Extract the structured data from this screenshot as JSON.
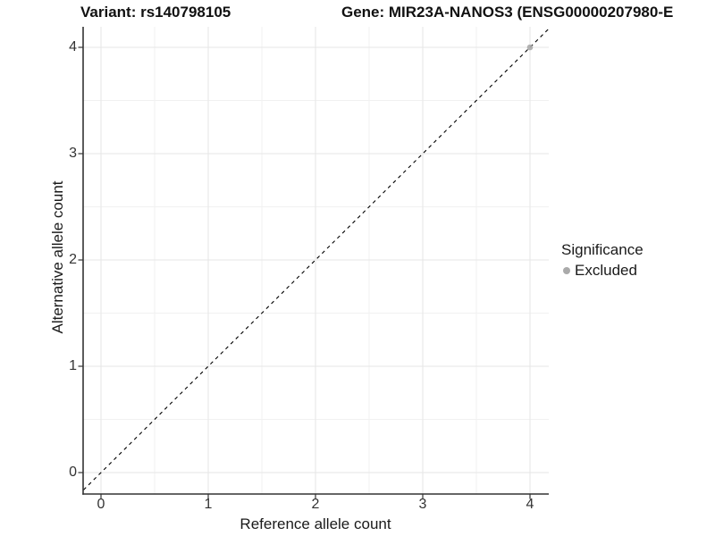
{
  "figure": {
    "title_left": "Variant: rs140798105",
    "title_right": "Gene: MIR23A-NANOS3 (ENSG00000207980-E"
  },
  "chart_data": {
    "type": "scatter",
    "xlabel": "Reference allele count",
    "ylabel": "Alternative allele count",
    "xlim": [
      -0.17,
      4.34
    ],
    "ylim": [
      -0.2,
      4.19
    ],
    "x_ticks": [
      0,
      1,
      2,
      3,
      4
    ],
    "y_ticks": [
      0,
      1,
      2,
      3,
      4
    ],
    "x_tick_labels": [
      "0",
      "1",
      "2",
      "3",
      "4"
    ],
    "y_tick_labels": [
      "0",
      "1",
      "2",
      "3",
      "4"
    ],
    "minor_ticks": [
      0.5,
      1.5,
      2.5,
      3.5
    ],
    "grid": true,
    "reference_line": {
      "type": "identity",
      "style": "dashed",
      "color": "#000000"
    },
    "series": [
      {
        "name": "Excluded",
        "marker": "circle",
        "color": "#aaaaaa",
        "points": [
          [
            4,
            4
          ]
        ]
      }
    ],
    "legend": {
      "title": "Significance",
      "position": "right",
      "items": [
        {
          "label": "Excluded",
          "marker": "circle",
          "color": "#aaaaaa"
        }
      ]
    },
    "colors": {
      "background": "#ffffff",
      "grid_major": "#e6e6e6",
      "grid_minor": "#f1f1f1",
      "axis_line": "#333333",
      "tick_text": "#333333",
      "point": "#aaaaaa"
    }
  }
}
